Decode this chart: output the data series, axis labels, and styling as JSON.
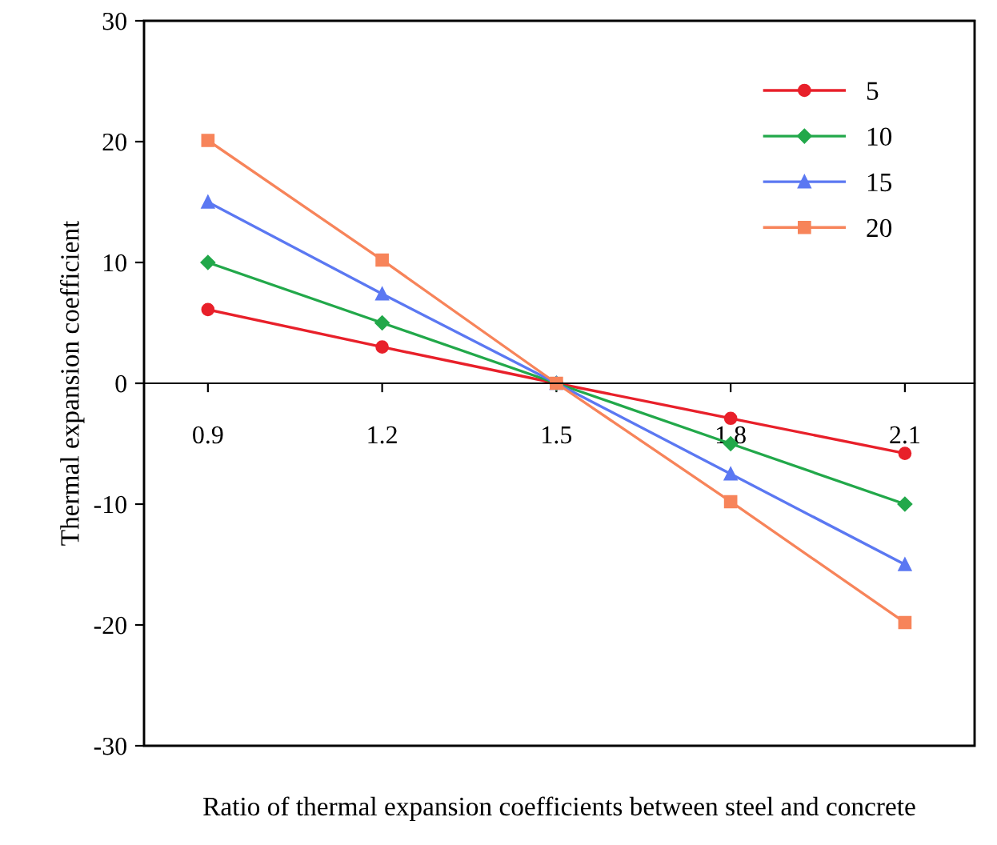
{
  "chart_data": {
    "type": "line",
    "xlabel": "Ratio of thermal expansion coefficients between steel and concrete",
    "ylabel": "Thermal expansion coefficient",
    "x": [
      0.9,
      1.2,
      1.5,
      1.8,
      2.1
    ],
    "series": [
      {
        "name": "5",
        "color": "#e8202a",
        "marker": "circle",
        "values": [
          6.1,
          3,
          0,
          -2.9,
          -5.8
        ]
      },
      {
        "name": "10",
        "color": "#22a84a",
        "marker": "diamond",
        "values": [
          10,
          5,
          0,
          -5,
          -10
        ]
      },
      {
        "name": "15",
        "color": "#5b78f2",
        "marker": "triangle",
        "values": [
          15,
          7.4,
          0,
          -7.5,
          -15
        ]
      },
      {
        "name": "20",
        "color": "#f7845a",
        "marker": "square",
        "values": [
          20.1,
          10.2,
          0,
          -9.8,
          -19.8
        ]
      }
    ],
    "xlim": [
      0.79,
      2.22
    ],
    "xticks": [
      0.9,
      1.2,
      1.5,
      1.8,
      2.1
    ],
    "ylim": [
      -30,
      30
    ],
    "yticks": [
      -30,
      -20,
      -10,
      0,
      10,
      20,
      30
    ],
    "grid": false,
    "legend": "top right",
    "line_style": "solid"
  }
}
